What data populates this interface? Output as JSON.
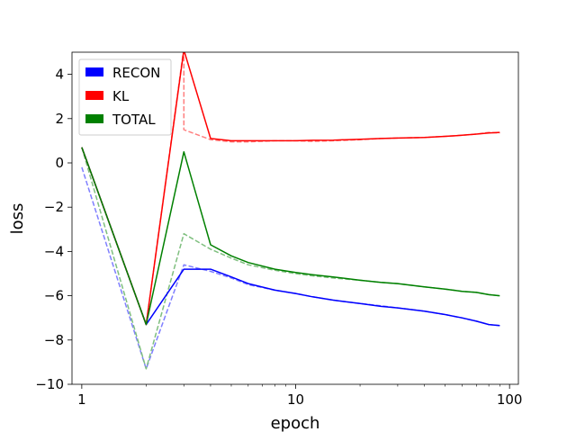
{
  "chart_data": {
    "type": "line",
    "xlabel": "epoch",
    "ylabel": "loss",
    "x_scale": "log",
    "xlim": [
      0.9,
      110
    ],
    "ylim": [
      -10,
      5
    ],
    "x_ticks": [
      1,
      10,
      100
    ],
    "x_tick_labels": [
      "1",
      "10",
      "100"
    ],
    "y_ticks": [
      -10,
      -8,
      -6,
      -4,
      -2,
      0,
      2,
      4
    ],
    "y_tick_labels": [
      "−10",
      "−8",
      "−6",
      "−4",
      "−2",
      "0",
      "2",
      "4"
    ],
    "legend": {
      "position": "top-left",
      "entries": [
        {
          "name": "RECON",
          "color": "#0000ff"
        },
        {
          "name": "KL",
          "color": "#ff0000"
        },
        {
          "name": "TOTAL",
          "color": "#008000"
        }
      ]
    },
    "series": [
      {
        "name": "RECON",
        "style": "dashed",
        "color": "#7f7fff",
        "x": [
          1,
          2,
          3,
          4,
          5,
          6,
          8,
          10,
          12,
          15,
          20,
          25,
          30,
          40,
          50,
          60,
          70,
          80,
          90
        ],
        "values": [
          -0.2,
          -9.3,
          -4.6,
          -4.9,
          -5.2,
          -5.5,
          -5.75,
          -5.9,
          -6.05,
          -6.2,
          -6.35,
          -6.45,
          -6.55,
          -6.7,
          -6.85,
          -7.0,
          -7.15,
          -7.3,
          -7.35
        ]
      },
      {
        "name": "KL",
        "style": "dashed",
        "color": "#ff7f7f",
        "x": [
          1,
          2,
          3,
          3,
          4,
          5,
          6,
          8,
          10,
          12,
          15,
          20,
          25,
          30,
          40,
          50,
          60,
          70,
          80,
          90
        ],
        "values": [
          0.7,
          -7.3,
          5.2,
          1.5,
          1.05,
          0.95,
          0.95,
          1.0,
          1.0,
          0.97,
          1.0,
          1.05,
          1.1,
          1.12,
          1.15,
          1.2,
          1.25,
          1.3,
          1.38,
          1.35
        ]
      },
      {
        "name": "TOTAL",
        "style": "dashed",
        "color": "#7fbf7f",
        "x": [
          1,
          2,
          3,
          4,
          5,
          6,
          8,
          10,
          12,
          15,
          20,
          25,
          30,
          40,
          50,
          60,
          70,
          80,
          90
        ],
        "values": [
          0.7,
          -9.3,
          -3.2,
          -3.9,
          -4.3,
          -4.6,
          -4.85,
          -5.0,
          -5.1,
          -5.2,
          -5.3,
          -5.4,
          -5.45,
          -5.6,
          -5.7,
          -5.8,
          -5.85,
          -5.95,
          -6.0
        ]
      },
      {
        "name": "RECON",
        "style": "solid",
        "color": "#0000ff",
        "x": [
          1,
          2,
          3,
          4,
          5,
          6,
          8,
          10,
          12,
          15,
          20,
          25,
          30,
          40,
          50,
          60,
          70,
          80,
          90
        ],
        "values": [
          0.7,
          -7.3,
          -4.8,
          -4.8,
          -5.15,
          -5.45,
          -5.75,
          -5.9,
          -6.05,
          -6.2,
          -6.35,
          -6.48,
          -6.55,
          -6.7,
          -6.85,
          -7.0,
          -7.15,
          -7.3,
          -7.35
        ]
      },
      {
        "name": "KL",
        "style": "solid",
        "color": "#ff0000",
        "x": [
          1,
          2,
          3,
          4,
          5,
          6,
          8,
          10,
          12,
          15,
          20,
          25,
          30,
          40,
          50,
          60,
          70,
          80,
          90
        ],
        "values": [
          0.7,
          -7.3,
          5.1,
          1.1,
          1.0,
          1.0,
          1.0,
          1.0,
          1.02,
          1.03,
          1.07,
          1.1,
          1.12,
          1.15,
          1.2,
          1.25,
          1.3,
          1.35,
          1.38
        ]
      },
      {
        "name": "TOTAL",
        "style": "solid",
        "color": "#008000",
        "x": [
          1,
          2,
          3,
          4,
          5,
          6,
          8,
          10,
          12,
          15,
          20,
          25,
          30,
          40,
          50,
          60,
          70,
          80,
          90
        ],
        "values": [
          0.7,
          -7.3,
          0.5,
          -3.7,
          -4.2,
          -4.5,
          -4.8,
          -4.95,
          -5.05,
          -5.15,
          -5.3,
          -5.4,
          -5.45,
          -5.6,
          -5.7,
          -5.8,
          -5.85,
          -5.95,
          -6.0
        ]
      }
    ]
  }
}
